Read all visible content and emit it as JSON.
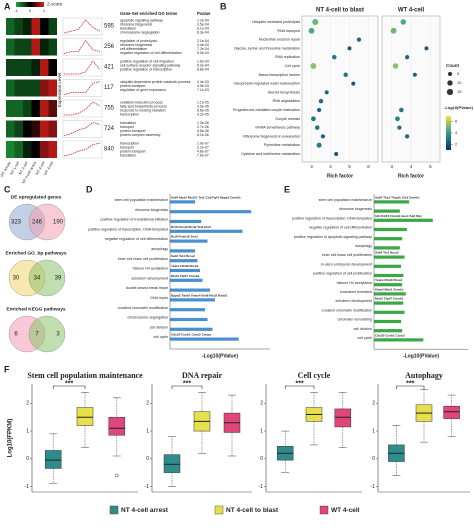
{
  "panel_labels": [
    "A",
    "B",
    "C",
    "D",
    "E",
    "F"
  ],
  "A": {
    "legend_title": "Z-score",
    "legend_ticks": [
      -1,
      0,
      1
    ],
    "y_label": "Expression Level",
    "terms_header": "Gene-Set enriched GO terms",
    "p_header": "Pvalue",
    "samples": [
      "WT oocyte",
      "NT 1-cell",
      "NT 2-cell",
      "NT 4-cell arrest",
      "NT 4-cell",
      "WT 4-cell"
    ],
    "clusters": [
      {
        "count": 595,
        "profile": [
          0.2,
          0.3,
          0.4,
          0.9,
          0.5,
          0.3
        ],
        "terms": [
          "apoptotic signaling pathway",
          "ribosome biogenesis",
          "translation",
          "chromosome segregation"
        ],
        "pvalues": [
          "1.2e-04",
          "3.5e-04",
          "6.1e-04",
          "8.3e-04"
        ]
      },
      {
        "count": 256,
        "profile": [
          0.2,
          0.3,
          0.3,
          0.9,
          0.4,
          0.3
        ],
        "terms": [
          "regulation of proteolysis",
          "ribosome biogenesis",
          "cell differentiation",
          "negative regulation of cell differentiation"
        ],
        "pvalues": [
          "2.1e-04",
          "4.4e-04",
          "7.2e-04",
          "9.0e-04"
        ]
      },
      {
        "count": 421,
        "profile": [
          0.3,
          0.3,
          0.3,
          0.4,
          0.9,
          0.5
        ],
        "terms": [
          "positive regulation of cell migration",
          "cell surface receptor signaling pathway",
          "positive regulation of transcription"
        ],
        "pvalues": [
          "1.6e-04",
          "5.2e-04",
          "8.8e-04"
        ]
      },
      {
        "count": 117,
        "profile": [
          0.2,
          0.3,
          0.3,
          0.3,
          0.8,
          0.9
        ],
        "terms": [
          "ubiquitin-dependent protein catabolic process",
          "protein transport",
          "regulation of gene expression"
        ],
        "pvalues": [
          "2.4e-03",
          "4.9e-03",
          "7.1e-03"
        ]
      },
      {
        "count": 755,
        "profile": [
          0.2,
          0.2,
          0.3,
          0.5,
          0.9,
          0.7
        ],
        "terms": [
          "oxidation-reduction process",
          "fatty acid biosynthetic process",
          "response to ionizing radiation",
          "transcription"
        ],
        "pvalues": [
          "1.1e-05",
          "3.0e-05",
          "6.6e-05",
          "9.2e-05"
        ]
      },
      {
        "count": 724,
        "profile": [
          0.2,
          0.3,
          0.5,
          0.6,
          0.9,
          0.8
        ],
        "terms": [
          "translation",
          "transport",
          "protein transport",
          "protein complex assembly"
        ],
        "pvalues": [
          "1.3e-06",
          "2.7e-06",
          "5.5e-06",
          "8.1e-06"
        ]
      },
      {
        "count": 840,
        "profile": [
          0.1,
          0.2,
          0.4,
          0.5,
          0.8,
          0.9
        ],
        "terms": [
          "transcription",
          "transport",
          "protein transport",
          "translation"
        ],
        "pvalues": [
          "1.0e-07",
          "2.2e-07",
          "4.8e-07",
          "7.6e-07"
        ]
      }
    ]
  },
  "B": {
    "titles": [
      "NT 4-cell to blast",
      "WT 4-cell"
    ],
    "x_label": "Rich factor",
    "terms": [
      "Ubiquitin mediated proteolysis",
      "RNA transport",
      "Nucleotide excision repair",
      "Glycine, serine and threonine metabolism",
      "RNA replication",
      "Cell cycle",
      "Basal transcription factors",
      "Vasopressin-regulated water reabsorption",
      "Steroid biosynthesis",
      "RNA degradation",
      "Progesterone-mediated oocyte maturation",
      "Oocyte meiosis",
      "mRNA surveillance pathway",
      "Ribosome biogenesis in eukaryotes",
      "Pyrimidine metabolism",
      "Cysteine and methionine metabolism"
    ],
    "series": [
      {
        "xlim": [
          2.5,
          6.5
        ],
        "xticks": [
          3,
          4,
          5,
          6
        ],
        "rich": [
          3.2,
          3.0,
          5.5,
          5.0,
          4.2,
          3.1,
          4.8,
          5.2,
          3.8,
          3.5,
          3.4,
          3.1,
          3.3,
          3.6,
          3.4,
          4.3
        ],
        "count": [
          14,
          12,
          5,
          4,
          6,
          13,
          6,
          4,
          4,
          6,
          5,
          7,
          6,
          5,
          8,
          4
        ],
        "logp": [
          5,
          4.5,
          2.5,
          2.2,
          3,
          5.5,
          3,
          2,
          2.5,
          2.8,
          2.5,
          3,
          2.8,
          2.5,
          3.2,
          2
        ]
      },
      {
        "xlim": [
          2.5,
          5.5
        ],
        "xticks": [
          3,
          4,
          5
        ],
        "rich": [
          3.6,
          3.1,
          null,
          4.8,
          3.8,
          3.2,
          4.2,
          null,
          null,
          null,
          3.5,
          3.3,
          3.4,
          3.8,
          null,
          null
        ],
        "count": [
          10,
          12,
          null,
          4,
          5,
          11,
          4,
          null,
          null,
          null,
          6,
          7,
          5,
          5,
          null,
          null
        ],
        "logp": [
          4.5,
          5,
          null,
          2.2,
          2.6,
          5.5,
          2.4,
          null,
          null,
          null,
          3,
          3.4,
          2.8,
          2.6,
          null,
          null
        ]
      }
    ],
    "count_legend": {
      "title": "Count",
      "values": [
        5,
        10,
        15
      ]
    },
    "color_legend": {
      "title": "-Log10(PValue)",
      "lim": [
        1,
        7
      ],
      "ticks": [
        2,
        4,
        6
      ]
    }
  },
  "C": {
    "venns": [
      {
        "title": "DE upregulated genes",
        "counts": [
          323,
          246,
          190
        ]
      },
      {
        "title": "Enriched GO_bp pathways",
        "counts": [
          30,
          34,
          39
        ]
      },
      {
        "title": "Enriched KEGG pathways",
        "counts": [
          6,
          7,
          3
        ]
      }
    ]
  },
  "D": {
    "x_label": "-Log10(PValue)",
    "xlim": [
      0,
      8
    ],
    "color": "#4a90d0",
    "terms": [
      "stem cell population maintenance",
      "ribosome biogenesis",
      "positive regulation of translational initiation",
      "positive regulation of transcription, DNA-templated",
      "negative regulation of cell differentiation",
      "autophagy",
      "inner cell mass cell proliferation",
      "histone H4 acetylation",
      "ectoderm development",
      "double-strand break repair",
      "DNA repair",
      "covalent chromatin modification",
      "chromosome segregation",
      "cell division",
      "cell cycle"
    ],
    "genes": [
      "Sall4 Mcd2 Mcd21 Tet1 Ctr9 Fgf4 Dppa2 Ctnnb1",
      null,
      null,
      "Bcl6 Ncoa6 Mcd2 Tet1 Etv5",
      "Bcl6 Prdm16 Sox2",
      null,
      "Sall4 Tet1 Brca2",
      "Yeats4 Brd8 Brca2",
      "Mcd2 Zfp57 Ctnnb1",
      null,
      "Dppa2 Tdrd9 Yeats4 Brd8 Mcd2 Rad51",
      null,
      null,
      null,
      "Cdc20 Ccnb1 Ccna2 Cenpa"
    ],
    "values": [
      2.0,
      6.5,
      2.5,
      5.8,
      3.0,
      2.0,
      2.2,
      2.4,
      2.6,
      3.2,
      3.6,
      2.8,
      3.0,
      3.4,
      5.5
    ]
  },
  "E": {
    "x_label": "-Log10(PValue)",
    "xlim": [
      0,
      8
    ],
    "color": "#3aa845",
    "terms": [
      "stem cell population maintenance",
      "ribosome biogenesis",
      "positive regulation of transcription, DNA-templated",
      "negative regulation of cell differentiation",
      "positive regulation of apoptotic signaling pathway",
      "autophagy",
      "inner cell mass cell proliferation",
      "in utero embryonic development",
      "positive regulation of cell proliferation",
      "histone H4 acetylation",
      "endoderm formation",
      "ectoderm development",
      "covalent chromatin modification",
      "chromatin remodeling",
      "cell division",
      "cell cycle"
    ],
    "genes": [
      "Sall4 Tbx3 Tfap2c Ctr9 Ctnnb1",
      null,
      "Id1 Rnf44 Ctnnb1 Hes1 Sp6 Myc",
      null,
      null,
      null,
      "Sall4 Tet1 Brca2",
      null,
      null,
      "Yeats4 Brd8 Brca2",
      "Gata4 Mixl1 Ctnnb1",
      "Mcd2 Zfp57 Ctnnb1",
      null,
      null,
      null,
      "Cdc20 Ccnb1 Ccna2"
    ],
    "values": [
      3.0,
      2.2,
      5.0,
      2.8,
      2.4,
      2.2,
      2.6,
      2.3,
      2.5,
      2.4,
      2.7,
      2.5,
      2.6,
      2.3,
      2.4,
      4.2
    ]
  },
  "F": {
    "y_label": "Log10(FPKM)",
    "groups": [
      "NT 4-cell arrest",
      "NT 4-cell to blast",
      "WT 4-cell"
    ],
    "colors": [
      "#2f8c8c",
      "#e8e04a",
      "#e0457b"
    ],
    "plots": [
      {
        "title": "Stem cell population maintenance",
        "ylim": [
          -1.2,
          2.7
        ],
        "yticks": [
          -1,
          0,
          1,
          2
        ],
        "significance": "***",
        "boxes": [
          {
            "whisker_low": -0.9,
            "q1": -0.35,
            "median": -0.05,
            "q3": 0.3,
            "whisker_high": 0.9
          },
          {
            "whisker_low": 0.4,
            "q1": 1.2,
            "median": 1.5,
            "q3": 1.85,
            "whisker_high": 2.4
          },
          {
            "whisker_low": 0.1,
            "q1": 0.85,
            "median": 1.1,
            "q3": 1.5,
            "whisker_high": 2.2,
            "outliers": [
              -0.6
            ]
          }
        ]
      },
      {
        "title": "DNA repair",
        "ylim": [
          -1.2,
          2.7
        ],
        "yticks": [
          -1,
          0,
          1,
          2
        ],
        "significance": "***",
        "boxes": [
          {
            "whisker_low": -1.0,
            "q1": -0.5,
            "median": -0.2,
            "q3": 0.15,
            "whisker_high": 0.8
          },
          {
            "whisker_low": 0.2,
            "q1": 1.0,
            "median": 1.35,
            "q3": 1.7,
            "whisker_high": 2.4
          },
          {
            "whisker_low": 0.1,
            "q1": 0.95,
            "median": 1.3,
            "q3": 1.65,
            "whisker_high": 2.3
          }
        ]
      },
      {
        "title": "Cell cycle",
        "ylim": [
          -1.2,
          2.7
        ],
        "yticks": [
          -1,
          0,
          1,
          2
        ],
        "significance": "***",
        "boxes": [
          {
            "whisker_low": -0.5,
            "q1": -0.05,
            "median": 0.2,
            "q3": 0.45,
            "whisker_high": 1.0
          },
          {
            "whisker_low": 0.5,
            "q1": 1.35,
            "median": 1.6,
            "q3": 1.85,
            "whisker_high": 2.4
          },
          {
            "whisker_low": 0.4,
            "q1": 1.15,
            "median": 1.5,
            "q3": 1.8,
            "whisker_high": 2.4
          }
        ]
      },
      {
        "title": "Autophagy",
        "ylim": [
          -1.2,
          2.7
        ],
        "yticks": [
          -1,
          0,
          1,
          2
        ],
        "significance": "***",
        "boxes": [
          {
            "whisker_low": -0.6,
            "q1": -0.1,
            "median": 0.2,
            "q3": 0.5,
            "whisker_high": 1.2
          },
          {
            "whisker_low": 0.6,
            "q1": 1.35,
            "median": 1.65,
            "q3": 1.95,
            "whisker_high": 2.5
          },
          {
            "whisker_low": 0.8,
            "q1": 1.45,
            "median": 1.7,
            "q3": 1.9,
            "whisker_high": 2.3
          }
        ]
      }
    ]
  }
}
